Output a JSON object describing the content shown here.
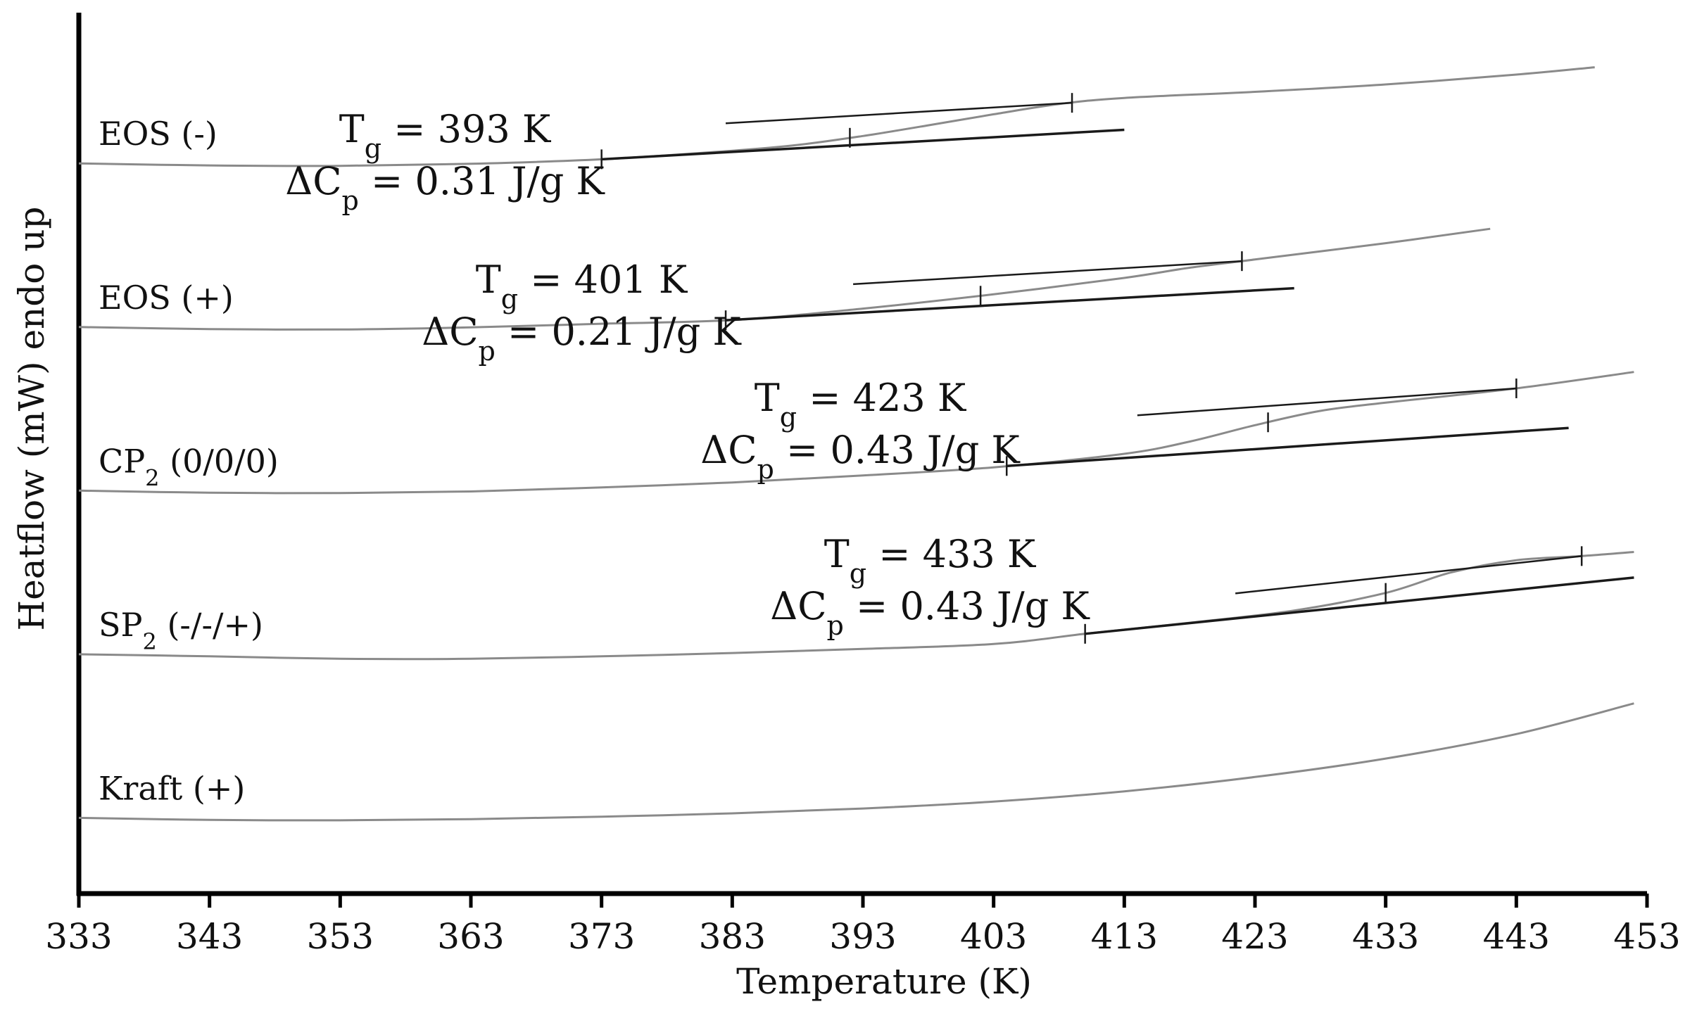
{
  "chart_data": {
    "type": "line",
    "xlabel": "Temperature (K)",
    "ylabel": "Heatflow (mW) endo up",
    "xlim": [
      333,
      453
    ],
    "x_ticks": [
      "333",
      "343",
      "353",
      "363",
      "373",
      "383",
      "393",
      "403",
      "413",
      "423",
      "433",
      "443",
      "453"
    ],
    "y_ticks_shown": false,
    "grid": false,
    "units": {
      "heatflow": "mW (arbitrary offset per trace)"
    },
    "series": [
      {
        "name": "EOS (-)",
        "label_main": "EOS (-)",
        "label_sub": "",
        "label_suffix": "",
        "x": [
          333,
          343,
          353,
          363,
          373,
          383,
          388,
          393,
          398,
          403,
          408,
          413,
          423,
          433,
          443,
          449
        ],
        "y": [
          14.85,
          14.8,
          14.79,
          14.84,
          14.95,
          15.16,
          15.3,
          15.52,
          15.78,
          16.05,
          16.3,
          16.45,
          16.6,
          16.78,
          17.02,
          17.2
        ],
        "glass_transition": {
          "tg": "393 K",
          "dcp": "0.31 J/g K",
          "tg_value": 393,
          "onset_x": 373,
          "end_x": 409,
          "mid_x": 392
        }
      },
      {
        "name": "EOS (+)",
        "label_main": "EOS (+)",
        "label_sub": "",
        "label_suffix": "",
        "x": [
          333,
          343,
          353,
          363,
          373,
          383,
          393,
          403,
          413,
          418,
          423,
          433,
          441
        ],
        "y": [
          10.85,
          10.8,
          10.79,
          10.84,
          10.93,
          11.02,
          11.3,
          11.65,
          12.05,
          12.3,
          12.5,
          12.9,
          13.25
        ],
        "glass_transition": {
          "tg": "401 K",
          "dcp": "0.21 J/g K",
          "tg_value": 401,
          "onset_x": 382.5,
          "end_x": 422,
          "mid_x": 402
        }
      },
      {
        "name": "CP2 (0/0/0)",
        "label_main": "CP",
        "label_sub": "2",
        "label_suffix": " (0/0/0)",
        "x": [
          333,
          343,
          353,
          363,
          373,
          383,
          393,
          403,
          413,
          418,
          423,
          428,
          433,
          443,
          452
        ],
        "y": [
          6.85,
          6.8,
          6.79,
          6.83,
          6.93,
          7.05,
          7.22,
          7.42,
          7.75,
          8.05,
          8.45,
          8.8,
          9.0,
          9.35,
          9.75
        ],
        "glass_transition": {
          "tg": "423 K",
          "dcp": "0.43 J/g K",
          "tg_value": 423,
          "onset_x": 404,
          "end_x": 443,
          "mid_x": 424
        }
      },
      {
        "name": "SP2 (-/-/+)",
        "label_main": "SP",
        "label_sub": "2",
        "label_suffix": " (-/-/+)",
        "x": [
          333,
          343,
          353,
          363,
          373,
          383,
          393,
          403,
          410,
          418,
          426,
          433,
          438,
          443,
          448,
          452
        ],
        "y": [
          2.85,
          2.8,
          2.74,
          2.74,
          2.8,
          2.88,
          2.98,
          3.1,
          3.35,
          3.62,
          3.92,
          4.35,
          4.85,
          5.15,
          5.25,
          5.35
        ],
        "glass_transition": {
          "tg": "433 K",
          "dcp": "0.43 J/g K",
          "tg_value": 433,
          "onset_x": 410,
          "end_x": 448,
          "mid_x": 433
        }
      },
      {
        "name": "Kraft (+)",
        "label_main": "Kraft (+)",
        "label_sub": "",
        "label_suffix": "",
        "x": [
          333,
          343,
          353,
          363,
          373,
          383,
          393,
          403,
          413,
          423,
          433,
          443,
          452
        ],
        "y": [
          -1.15,
          -1.2,
          -1.21,
          -1.18,
          -1.12,
          -1.04,
          -0.92,
          -0.75,
          -0.5,
          -0.15,
          0.3,
          0.9,
          1.65
        ],
        "glass_transition": null
      }
    ]
  },
  "annotations": [
    {
      "tg_prefix": "T",
      "tg_sub": "g",
      "tg_text": " = 393 K",
      "dcp_prefix": "ΔC",
      "dcp_sub": "p",
      "dcp_text": " = 0.31 J/g K"
    },
    {
      "tg_prefix": "T",
      "tg_sub": "g",
      "tg_text": " = 401 K",
      "dcp_prefix": "ΔC",
      "dcp_sub": "p",
      "dcp_text": " = 0.21 J/g K"
    },
    {
      "tg_prefix": "T",
      "tg_sub": "g",
      "tg_text": " = 423 K",
      "dcp_prefix": "ΔC",
      "dcp_sub": "p",
      "dcp_text": " = 0.43 J/g K"
    },
    {
      "tg_prefix": "T",
      "tg_sub": "g",
      "tg_text": " = 433 K",
      "dcp_prefix": "ΔC",
      "dcp_sub": "p",
      "dcp_text": " = 0.43 J/g K"
    }
  ],
  "colors": {
    "curve": "#8a8a8a",
    "construction_line": "#1a1a1a",
    "axis": "#000000"
  }
}
